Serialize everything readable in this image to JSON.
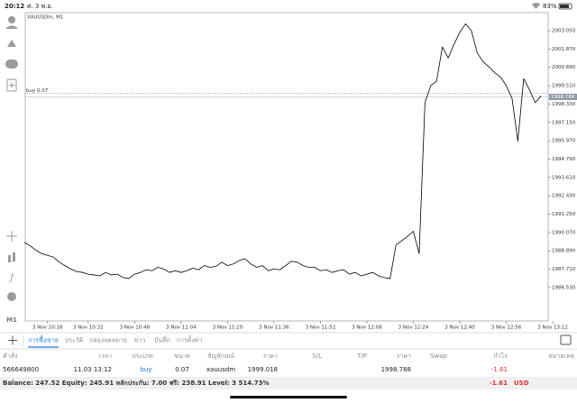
{
  "status_bar": {
    "time": "20:12",
    "date": "ศ. 3 พ.ย.",
    "battery": "83%"
  },
  "sidebar": {
    "timeframe": "M1"
  },
  "chart_data": {
    "type": "line",
    "title": "XAUUSDm, M1",
    "color": "#000000",
    "categories": [
      null,
      null,
      null,
      null,
      "3 Nov 10:18",
      null,
      null,
      null,
      null,
      null,
      null,
      "3 Nov 10:32",
      null,
      null,
      null,
      null,
      null,
      null,
      null,
      "3 Nov 10:48",
      null,
      null,
      null,
      null,
      null,
      null,
      null,
      "3 Nov 11:04",
      null,
      null,
      null,
      null,
      null,
      null,
      null,
      "3 Nov 11:20",
      null,
      null,
      null,
      null,
      null,
      null,
      null,
      "3 Nov 11:36",
      null,
      null,
      null,
      null,
      null,
      null,
      null,
      "3 Nov 11:52",
      null,
      null,
      null,
      null,
      null,
      null,
      null,
      "3 Nov 12:08",
      null,
      null,
      null,
      null,
      null,
      null,
      null,
      "3 Nov 12:24",
      null,
      null,
      null,
      null,
      null,
      null,
      null,
      "3 Nov 12:40",
      null,
      null,
      null,
      null,
      null,
      null,
      null,
      "3 Nov 12:56",
      null,
      null,
      null,
      null,
      null,
      null,
      null,
      "3 Nov 13:12"
    ],
    "values": [
      1989.43,
      1989.21,
      1988.93,
      1988.71,
      1988.6,
      1988.49,
      1988.16,
      1987.94,
      1987.72,
      1987.56,
      1987.5,
      1987.39,
      1987.34,
      1987.28,
      1987.5,
      1987.34,
      1987.39,
      1987.17,
      1987.11,
      1987.39,
      1987.5,
      1987.67,
      1987.61,
      1987.83,
      1987.72,
      1987.5,
      1987.61,
      1987.5,
      1987.61,
      1987.78,
      1987.67,
      1987.94,
      1987.83,
      1987.89,
      1988.16,
      1987.94,
      1988.05,
      1988.27,
      1988.38,
      1988.05,
      1987.83,
      1987.94,
      1987.61,
      1987.72,
      1987.67,
      1987.94,
      1988.22,
      1988.16,
      1987.94,
      1987.83,
      1987.83,
      1987.61,
      1987.67,
      1987.5,
      1987.61,
      1987.67,
      1987.39,
      1987.5,
      1987.28,
      1987.39,
      1987.5,
      1987.28,
      1987.17,
      1987.11,
      1989.26,
      1989.54,
      1989.82,
      1990.15,
      1988.71,
      1998.42,
      1999.52,
      1999.8,
      2002.0,
      2001.29,
      2002.17,
      2002.94,
      2003.49,
      2003.05,
      2001.62,
      2001.06,
      2000.73,
      2000.35,
      2000.07,
      1999.52,
      1998.69,
      1995.94,
      1999.96,
      1999.25,
      1998.42,
      1998.85,
      null,
      null
    ],
    "ylim": [
      1984.38,
      2004.21
    ],
    "yticks": [
      {
        "value": 2003.05,
        "label": "2003.050"
      },
      {
        "value": 2001.87,
        "label": "2001.870"
      },
      {
        "value": 2000.69,
        "label": "2000.690"
      },
      {
        "value": 1999.51,
        "label": "1999.510"
      },
      {
        "value": 1998.33,
        "label": "1998.330"
      },
      {
        "value": 1997.15,
        "label": "1997.150"
      },
      {
        "value": 1995.97,
        "label": "1995.970"
      },
      {
        "value": 1994.79,
        "label": "1994.790"
      },
      {
        "value": 1993.61,
        "label": "1993.610"
      },
      {
        "value": 1992.43,
        "label": "1992.430"
      },
      {
        "value": 1991.25,
        "label": "1991.250"
      },
      {
        "value": 1990.07,
        "label": "1990.070"
      },
      {
        "value": 1988.89,
        "label": "1988.890"
      },
      {
        "value": 1987.71,
        "label": "1987.710"
      },
      {
        "value": 1986.53,
        "label": "1986.530"
      }
    ],
    "position": {
      "label": "buy 0.07",
      "value": 1999.018
    },
    "bid": {
      "value": 1998.788
    }
  },
  "tabs": [
    "การซื้อขาย",
    "ประวัติ",
    "กล่องจดหมาย",
    "ข่าว",
    "บันทึก",
    "การตั้งค่า"
  ],
  "table": {
    "header": [
      "คำสั่ง",
      "เวลา",
      "ประเภท",
      "ขนาด",
      "สัญลักษณ์",
      "ราคา",
      "S/L",
      "T/P",
      "ราคา",
      "Swap",
      "กำไร",
      "หมายเหตุ"
    ],
    "rows": [
      {
        "order": "566649800",
        "time": "11.03 13:12",
        "type": "buy",
        "volume": "0.07",
        "symbol": "xauusdm",
        "price": "1999.018",
        "current_price": "1998.788",
        "profit": "-1.61"
      }
    ]
  },
  "footer": {
    "summary": "Balance: 247.52 Equity: 245.91 หลักประกัน: 7.00 ฟรี: 238.91 Level: 3 514.73%",
    "profit": "-1.61",
    "currency": "USD"
  }
}
